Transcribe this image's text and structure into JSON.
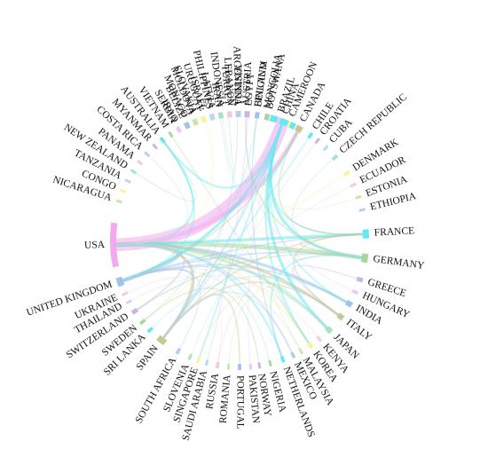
{
  "chart_data": {
    "type": "chord",
    "title": "",
    "nodes": [
      {
        "name": "CHINA",
        "angle": 20,
        "span": 12,
        "color": "#66e8f2"
      },
      {
        "name": "CROATIA",
        "angle": 38,
        "span": 1.2,
        "color": "#c9b6e8"
      },
      {
        "name": "CUBA",
        "angle": 43,
        "span": 1.2,
        "color": "#b9d9f0"
      },
      {
        "name": "CZECH REPUBLIC",
        "angle": 49,
        "span": 1.6,
        "color": "#a9e3c6"
      },
      {
        "name": "DENMARK",
        "angle": 58,
        "span": 1.6,
        "color": "#f6f59b"
      },
      {
        "name": "ECUADOR",
        "angle": 64,
        "span": 1.2,
        "color": "#f7c6e2"
      },
      {
        "name": "ESTONIA",
        "angle": 70,
        "span": 1.2,
        "color": "#cce6a8"
      },
      {
        "name": "ETHIOPIA",
        "angle": 76,
        "span": 1.2,
        "color": "#b7cdf0"
      },
      {
        "name": "FRANCE",
        "angle": 87,
        "span": 4,
        "color": "#66e8f2"
      },
      {
        "name": "GERMANY",
        "angle": 98,
        "span": 4,
        "color": "#a7d89b"
      },
      {
        "name": "GREECE",
        "angle": 108,
        "span": 2,
        "color": "#c9b6e8"
      },
      {
        "name": "HUNGARY",
        "angle": 114,
        "span": 1.5,
        "color": "#e6ccf2"
      },
      {
        "name": "INDIA",
        "angle": 120,
        "span": 2.5,
        "color": "#9cc4ec"
      },
      {
        "name": "ITALY",
        "angle": 127,
        "span": 2.5,
        "color": "#c6c896"
      },
      {
        "name": "JAPAN",
        "angle": 135,
        "span": 2.5,
        "color": "#a9e3c6"
      },
      {
        "name": "KENYA",
        "angle": 141,
        "span": 1.2,
        "color": "#f7c6e2"
      },
      {
        "name": "KOREA",
        "angle": 146,
        "span": 2,
        "color": "#f6f59b"
      },
      {
        "name": "MALAYSIA",
        "angle": 151,
        "span": 1.2,
        "color": "#cce6a8"
      },
      {
        "name": "MEXICO",
        "angle": 155,
        "span": 1.5,
        "color": "#b7cdf0"
      },
      {
        "name": "NETHERLANDS",
        "angle": 160,
        "span": 1.5,
        "color": "#66e8f2"
      },
      {
        "name": "NIGERIA",
        "angle": 166,
        "span": 1.2,
        "color": "#a7d89b"
      },
      {
        "name": "NORWAY",
        "angle": 171,
        "span": 1.2,
        "color": "#c9b6e8"
      },
      {
        "name": "PAKISTAN",
        "angle": 175,
        "span": 1.2,
        "color": "#e6ccf2"
      },
      {
        "name": "PORTUGAL",
        "angle": 180,
        "span": 1.5,
        "color": "#9cc4ec"
      },
      {
        "name": "ROMANIA",
        "angle": 185,
        "span": 1.2,
        "color": "#cce6a8"
      },
      {
        "name": "RUSSIA",
        "angle": 190,
        "span": 1.5,
        "color": "#f7c6e2"
      },
      {
        "name": "SAUDI ARABIA",
        "angle": 195,
        "span": 1.2,
        "color": "#b9d9f0"
      },
      {
        "name": "SINGAPORE",
        "angle": 199,
        "span": 1.2,
        "color": "#f6f59b"
      },
      {
        "name": "SLOVENIA",
        "angle": 203,
        "span": 1.2,
        "color": "#a9e3c6"
      },
      {
        "name": "SOUTH AFRICA",
        "angle": 209,
        "span": 1.5,
        "color": "#b7cdf0"
      },
      {
        "name": "SPAIN",
        "angle": 218,
        "span": 4,
        "color": "#c6c896"
      },
      {
        "name": "SRI LANKA",
        "angle": 225,
        "span": 1.5,
        "color": "#66e8f2"
      },
      {
        "name": "SWEDEN",
        "angle": 230,
        "span": 1.5,
        "color": "#a7d89b"
      },
      {
        "name": "SWITZERLAND",
        "angle": 236,
        "span": 2,
        "color": "#c9b6e8"
      },
      {
        "name": "THAILAND",
        "angle": 241,
        "span": 1.2,
        "color": "#e6ccf2"
      },
      {
        "name": "UKRAINE",
        "angle": 245,
        "span": 1.2,
        "color": "#f7c6e2"
      },
      {
        "name": "UNITED KINGDOM",
        "angle": 251,
        "span": 4,
        "color": "#9cc4ec"
      },
      {
        "name": "USA",
        "angle": 268,
        "span": 20,
        "color": "#f2a9ee"
      },
      {
        "name": "NICARAGUA",
        "angle": 288,
        "span": 1.2,
        "color": "#cce6a8"
      },
      {
        "name": "CONGO",
        "angle": 293,
        "span": 1.2,
        "color": "#f6f59b"
      },
      {
        "name": "TANZANIA",
        "angle": 298,
        "span": 1.2,
        "color": "#b9d9f0"
      },
      {
        "name": "NEW ZEALAND",
        "angle": 303,
        "span": 1.2,
        "color": "#a9e3c6"
      },
      {
        "name": "PANAMA",
        "angle": 308,
        "span": 1.2,
        "color": "#f7c6e2"
      },
      {
        "name": "COSTA RICA",
        "angle": 313,
        "span": 1.2,
        "color": "#b7cdf0"
      },
      {
        "name": "MYANMAR",
        "angle": 318,
        "span": 1.2,
        "color": "#c9b6e8"
      },
      {
        "name": "AUSTRALIA",
        "angle": 322.5,
        "span": 1.5,
        "color": "#66e8f2"
      },
      {
        "name": "VIETNAM",
        "angle": 327,
        "span": 1.2,
        "color": "#a7d89b"
      },
      {
        "name": "IRAQ",
        "angle": 331.5,
        "span": 1.2,
        "color": "#e6ccf2"
      },
      {
        "name": "MONACO",
        "angle": 336,
        "span": 1.2,
        "color": "#9cc4ec"
      },
      {
        "name": "SLOVAKIA",
        "angle": 340,
        "span": 1.2,
        "color": "#cce6a8"
      },
      {
        "name": "ISRAEL",
        "angle": 344,
        "span": 1.2,
        "color": "#f6f59b"
      },
      {
        "name": "LATVIA",
        "angle": 348,
        "span": 1.2,
        "color": "#b9d9f0"
      },
      {
        "name": "INDONESIA",
        "angle": 352,
        "span": 1.2,
        "color": "#a9e3c6"
      },
      {
        "name": "LEBANON",
        "angle": 356,
        "span": 1.2,
        "color": "#f7c6e2"
      },
      {
        "name": "TUNISIA",
        "angle": 0,
        "span": 1.2,
        "color": "#b7cdf0"
      },
      {
        "name": "EGYPT",
        "angle": 4,
        "span": 1.2,
        "color": "#c9b6e8"
      },
      {
        "name": "FINLAND",
        "angle": 8,
        "span": 1.2,
        "color": "#66e8f2"
      },
      {
        "name": "MONGOLIA",
        "angle": 12,
        "span": 1.2,
        "color": "#a7d89b"
      },
      {
        "name": "SERBIA",
        "angle": 331,
        "span": 1.2,
        "color": "#e6ccf2"
      },
      {
        "name": "BELIZE",
        "angle": 335,
        "span": 1.2,
        "color": "#9cc4ec"
      },
      {
        "name": "MOLDOVA",
        "angle": 339,
        "span": 1.2,
        "color": "#cce6a8"
      },
      {
        "name": "URUGUAY",
        "angle": 343,
        "span": 1.2,
        "color": "#f6f59b"
      },
      {
        "name": "PHILIPPINES",
        "angle": 347,
        "span": 1.2,
        "color": "#b9d9f0"
      },
      {
        "name": "IRAN",
        "angle": 351,
        "span": 1.2,
        "color": "#a9e3c6"
      },
      {
        "name": "TURKEY",
        "angle": 355,
        "span": 1.2,
        "color": "#f7c6e2"
      },
      {
        "name": "ARGENTINA",
        "angle": 359,
        "span": 1.5,
        "color": "#b7cdf0"
      },
      {
        "name": "AUSTRIA",
        "angle": 3,
        "span": 1.5,
        "color": "#c9b6e8"
      },
      {
        "name": "BELGIUM",
        "angle": 8,
        "span": 2,
        "color": "#9cc4ec"
      },
      {
        "name": "BOTSWANA",
        "angle": 13,
        "span": 1.2,
        "color": "#a7d89b"
      },
      {
        "name": "BRAZIL",
        "angle": 18,
        "span": 1.5,
        "color": "#e6ccf2"
      },
      {
        "name": "CAMEROON",
        "angle": 23,
        "span": 1.2,
        "color": "#f6f59b"
      },
      {
        "name": "CANADA",
        "angle": 28,
        "span": 3,
        "color": "#c6c896"
      },
      {
        "name": "CHILE",
        "angle": 34,
        "span": 1.5,
        "color": "#66e8f2"
      }
    ],
    "links": [
      {
        "source": "USA",
        "target": "CHINA",
        "weight": 9,
        "color": "#f2a9ee"
      },
      {
        "source": "USA",
        "target": "CANADA",
        "weight": 3,
        "color": "#f2a9ee"
      },
      {
        "source": "USA",
        "target": "UNITED KINGDOM",
        "weight": 3,
        "color": "#9cc4ec"
      },
      {
        "source": "USA",
        "target": "GERMANY",
        "weight": 3,
        "color": "#a7d89b"
      },
      {
        "source": "USA",
        "target": "FRANCE",
        "weight": 2,
        "color": "#66e8f2"
      },
      {
        "source": "USA",
        "target": "SPAIN",
        "weight": 2,
        "color": "#c6c896"
      },
      {
        "source": "USA",
        "target": "ITALY",
        "weight": 2,
        "color": "#c6c896"
      },
      {
        "source": "USA",
        "target": "INDIA",
        "weight": 2,
        "color": "#9cc4ec"
      },
      {
        "source": "USA",
        "target": "JAPAN",
        "weight": 2,
        "color": "#a9e3c6"
      },
      {
        "source": "USA",
        "target": "KOREA",
        "weight": 1.5,
        "color": "#f6f59b"
      },
      {
        "source": "USA",
        "target": "AUSTRALIA",
        "weight": 1.5,
        "color": "#66e8f2"
      },
      {
        "source": "USA",
        "target": "BRAZIL",
        "weight": 1.5,
        "color": "#e6ccf2"
      },
      {
        "source": "USA",
        "target": "NETHERLANDS",
        "weight": 1.5,
        "color": "#66e8f2"
      },
      {
        "source": "USA",
        "target": "SWITZERLAND",
        "weight": 1.2,
        "color": "#c9b6e8"
      },
      {
        "source": "USA",
        "target": "MEXICO",
        "weight": 1.2,
        "color": "#b7cdf0"
      },
      {
        "source": "CHINA",
        "target": "UNITED KINGDOM",
        "weight": 2,
        "color": "#66e8f2"
      },
      {
        "source": "CHINA",
        "target": "GERMANY",
        "weight": 2,
        "color": "#66e8f2"
      },
      {
        "source": "CHINA",
        "target": "JAPAN",
        "weight": 2,
        "color": "#66e8f2"
      },
      {
        "source": "CHINA",
        "target": "CANADA",
        "weight": 1.5,
        "color": "#66e8f2"
      },
      {
        "source": "CHINA",
        "target": "AUSTRALIA",
        "weight": 1.5,
        "color": "#66e8f2"
      },
      {
        "source": "CHINA",
        "target": "KOREA",
        "weight": 1.5,
        "color": "#66e8f2"
      },
      {
        "source": "CHINA",
        "target": "SPAIN",
        "weight": 1.2,
        "color": "#66e8f2"
      },
      {
        "source": "CHINA",
        "target": "FRANCE",
        "weight": 1.2,
        "color": "#66e8f2"
      },
      {
        "source": "CHINA",
        "target": "SINGAPORE",
        "weight": 1,
        "color": "#66e8f2"
      },
      {
        "source": "CHINA",
        "target": "INDIA",
        "weight": 1,
        "color": "#66e8f2"
      },
      {
        "source": "UNITED KINGDOM",
        "target": "GERMANY",
        "weight": 1.2,
        "color": "#9cc4ec"
      },
      {
        "source": "UNITED KINGDOM",
        "target": "SPAIN",
        "weight": 1.2,
        "color": "#9cc4ec"
      },
      {
        "source": "UNITED KINGDOM",
        "target": "ITALY",
        "weight": 1,
        "color": "#9cc4ec"
      },
      {
        "source": "UNITED KINGDOM",
        "target": "FRANCE",
        "weight": 1,
        "color": "#9cc4ec"
      },
      {
        "source": "GERMANY",
        "target": "FRANCE",
        "weight": 1,
        "color": "#a7d89b"
      },
      {
        "source": "GERMANY",
        "target": "SWITZERLAND",
        "weight": 1,
        "color": "#a7d89b"
      },
      {
        "source": "GERMANY",
        "target": "AUSTRIA",
        "weight": 1,
        "color": "#a7d89b"
      },
      {
        "source": "SPAIN",
        "target": "ITALY",
        "weight": 1,
        "color": "#c6c896"
      },
      {
        "source": "SPAIN",
        "target": "PORTUGAL",
        "weight": 1,
        "color": "#c6c896"
      },
      {
        "source": "SPAIN",
        "target": "FRANCE",
        "weight": 1,
        "color": "#c6c896"
      },
      {
        "source": "CANADA",
        "target": "UNITED KINGDOM",
        "weight": 1,
        "color": "#c6c896"
      },
      {
        "source": "CANADA",
        "target": "FRANCE",
        "weight": 1,
        "color": "#c6c896"
      },
      {
        "source": "AUSTRALIA",
        "target": "UNITED KINGDOM",
        "weight": 1,
        "color": "#66e8f2"
      },
      {
        "source": "ITALY",
        "target": "FRANCE",
        "weight": 1,
        "color": "#c6c896"
      },
      {
        "source": "INDIA",
        "target": "UNITED KINGDOM",
        "weight": 1,
        "color": "#9cc4ec"
      },
      {
        "source": "JAPAN",
        "target": "KOREA",
        "weight": 1,
        "color": "#a9e3c6"
      },
      {
        "source": "BRAZIL",
        "target": "SPAIN",
        "weight": 1,
        "color": "#e6ccf2"
      },
      {
        "source": "NETHERLANDS",
        "target": "GERMANY",
        "weight": 1,
        "color": "#66e8f2"
      },
      {
        "source": "SWEDEN",
        "target": "NORWAY",
        "weight": 0.8,
        "color": "#a7d89b"
      },
      {
        "source": "DENMARK",
        "target": "SWEDEN",
        "weight": 0.8,
        "color": "#f6f59b"
      },
      {
        "source": "BELGIUM",
        "target": "NETHERLANDS",
        "weight": 0.8,
        "color": "#9cc4ec"
      },
      {
        "source": "GREECE",
        "target": "ITALY",
        "weight": 0.8,
        "color": "#c9b6e8"
      },
      {
        "source": "CHILE",
        "target": "SPAIN",
        "weight": 0.8,
        "color": "#66e8f2"
      },
      {
        "source": "MEXICO",
        "target": "SPAIN",
        "weight": 0.8,
        "color": "#b7cdf0"
      },
      {
        "source": "ARGENTINA",
        "target": "SPAIN",
        "weight": 0.8,
        "color": "#b7cdf0"
      },
      {
        "source": "SOUTH AFRICA",
        "target": "UNITED KINGDOM",
        "weight": 0.8,
        "color": "#b7cdf0"
      },
      {
        "source": "NEW ZEALAND",
        "target": "AUSTRALIA",
        "weight": 0.8,
        "color": "#a9e3c6"
      },
      {
        "source": "IRAN",
        "target": "TURKEY",
        "weight": 0.6,
        "color": "#a9e3c6"
      },
      {
        "source": "PAKISTAN",
        "target": "CHINA",
        "weight": 0.6,
        "color": "#e6ccf2"
      },
      {
        "source": "MALAYSIA",
        "target": "SINGAPORE",
        "weight": 0.6,
        "color": "#cce6a8"
      },
      {
        "source": "RUSSIA",
        "target": "GERMANY",
        "weight": 0.6,
        "color": "#f7c6e2"
      },
      {
        "source": "ISRAEL",
        "target": "USA",
        "weight": 0.6,
        "color": "#f6f59b"
      },
      {
        "source": "HUNGARY",
        "target": "AUSTRIA",
        "weight": 0.6,
        "color": "#e6ccf2"
      },
      {
        "source": "CZECH REPUBLIC",
        "target": "GERMANY",
        "weight": 0.6,
        "color": "#a9e3c6"
      },
      {
        "source": "THAILAND",
        "target": "JAPAN",
        "weight": 0.6,
        "color": "#e6ccf2"
      },
      {
        "source": "VIETNAM",
        "target": "KOREA",
        "weight": 0.6,
        "color": "#a7d89b"
      },
      {
        "source": "EGYPT",
        "target": "SAUDI ARABIA",
        "weight": 0.5,
        "color": "#c9b6e8"
      },
      {
        "source": "NIGERIA",
        "target": "UNITED KINGDOM",
        "weight": 0.5,
        "color": "#a7d89b"
      },
      {
        "source": "KENYA",
        "target": "UNITED KINGDOM",
        "weight": 0.5,
        "color": "#f7c6e2"
      },
      {
        "source": "COSTA RICA",
        "target": "USA",
        "weight": 0.5,
        "color": "#b7cdf0"
      },
      {
        "source": "SLOVENIA",
        "target": "CROATIA",
        "weight": 0.5,
        "color": "#a9e3c6"
      },
      {
        "source": "SRI LANKA",
        "target": "INDIA",
        "weight": 0.5,
        "color": "#66e8f2"
      },
      {
        "source": "ECUADOR",
        "target": "SPAIN",
        "weight": 0.5,
        "color": "#f7c6e2"
      },
      {
        "source": "ROMANIA",
        "target": "ITALY",
        "weight": 0.5,
        "color": "#cce6a8"
      },
      {
        "source": "UKRAINE",
        "target": "RUSSIA",
        "weight": 0.5,
        "color": "#f7c6e2"
      },
      {
        "source": "FINLAND",
        "target": "SWEDEN",
        "weight": 0.5,
        "color": "#66e8f2"
      },
      {
        "source": "ESTONIA",
        "target": "FINLAND",
        "weight": 0.5,
        "color": "#cce6a8"
      },
      {
        "source": "INDONESIA",
        "target": "MALAYSIA",
        "weight": 0.5,
        "color": "#a9e3c6"
      }
    ]
  }
}
